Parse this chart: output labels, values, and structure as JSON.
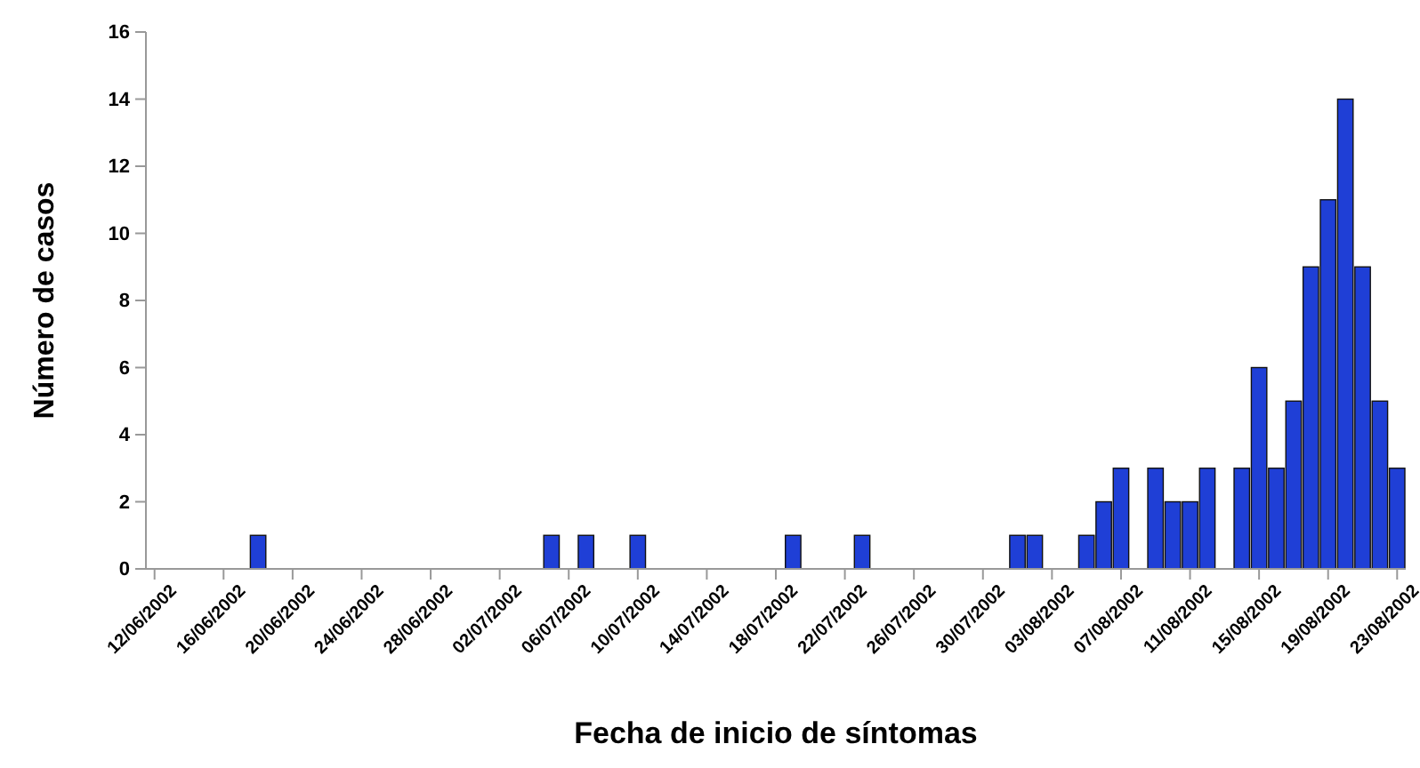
{
  "chart_data": {
    "type": "bar",
    "xlabel": "Fecha de inicio de síntomas",
    "ylabel": "Número de casos",
    "x": [
      "2002-06-18",
      "2002-07-05",
      "2002-07-07",
      "2002-07-10",
      "2002-07-19",
      "2002-07-23",
      "2002-08-01",
      "2002-08-02",
      "2002-08-05",
      "2002-08-06",
      "2002-08-07",
      "2002-08-09",
      "2002-08-10",
      "2002-08-11",
      "2002-08-12",
      "2002-08-14",
      "2002-08-15",
      "2002-08-16",
      "2002-08-17",
      "2002-08-18",
      "2002-08-19",
      "2002-08-20",
      "2002-08-21",
      "2002-08-22",
      "2002-08-23"
    ],
    "values": [
      1,
      1,
      1,
      1,
      1,
      1,
      1,
      1,
      1,
      2,
      3,
      3,
      2,
      2,
      3,
      3,
      6,
      3,
      5,
      9,
      11,
      14,
      9,
      5,
      3
    ],
    "color": "#1f3fd6",
    "xlim": [
      "2002-06-11T12:00",
      "2002-08-23T12:00"
    ],
    "xticks": [
      {
        "value": "2002-06-12",
        "label": "12/06/2002"
      },
      {
        "value": "2002-06-16",
        "label": "16/06/2002"
      },
      {
        "value": "2002-06-20",
        "label": "20/06/2002"
      },
      {
        "value": "2002-06-24",
        "label": "24/06/2002"
      },
      {
        "value": "2002-06-28",
        "label": "28/06/2002"
      },
      {
        "value": "2002-07-02",
        "label": "02/07/2002"
      },
      {
        "value": "2002-07-06",
        "label": "06/07/2002"
      },
      {
        "value": "2002-07-10",
        "label": "10/07/2002"
      },
      {
        "value": "2002-07-14",
        "label": "14/07/2002"
      },
      {
        "value": "2002-07-18",
        "label": "18/07/2002"
      },
      {
        "value": "2002-07-22",
        "label": "22/07/2002"
      },
      {
        "value": "2002-07-26",
        "label": "26/07/2002"
      },
      {
        "value": "2002-07-30",
        "label": "30/07/2002"
      },
      {
        "value": "2002-08-03",
        "label": "03/08/2002"
      },
      {
        "value": "2002-08-07",
        "label": "07/08/2002"
      },
      {
        "value": "2002-08-11",
        "label": "11/08/2002"
      },
      {
        "value": "2002-08-15",
        "label": "15/08/2002"
      },
      {
        "value": "2002-08-19",
        "label": "19/08/2002"
      },
      {
        "value": "2002-08-23",
        "label": "23/08/2002"
      }
    ],
    "ylim": [
      0,
      16
    ],
    "yticks": [
      0,
      2,
      4,
      6,
      8,
      10,
      12,
      14,
      16
    ],
    "grid": false
  }
}
